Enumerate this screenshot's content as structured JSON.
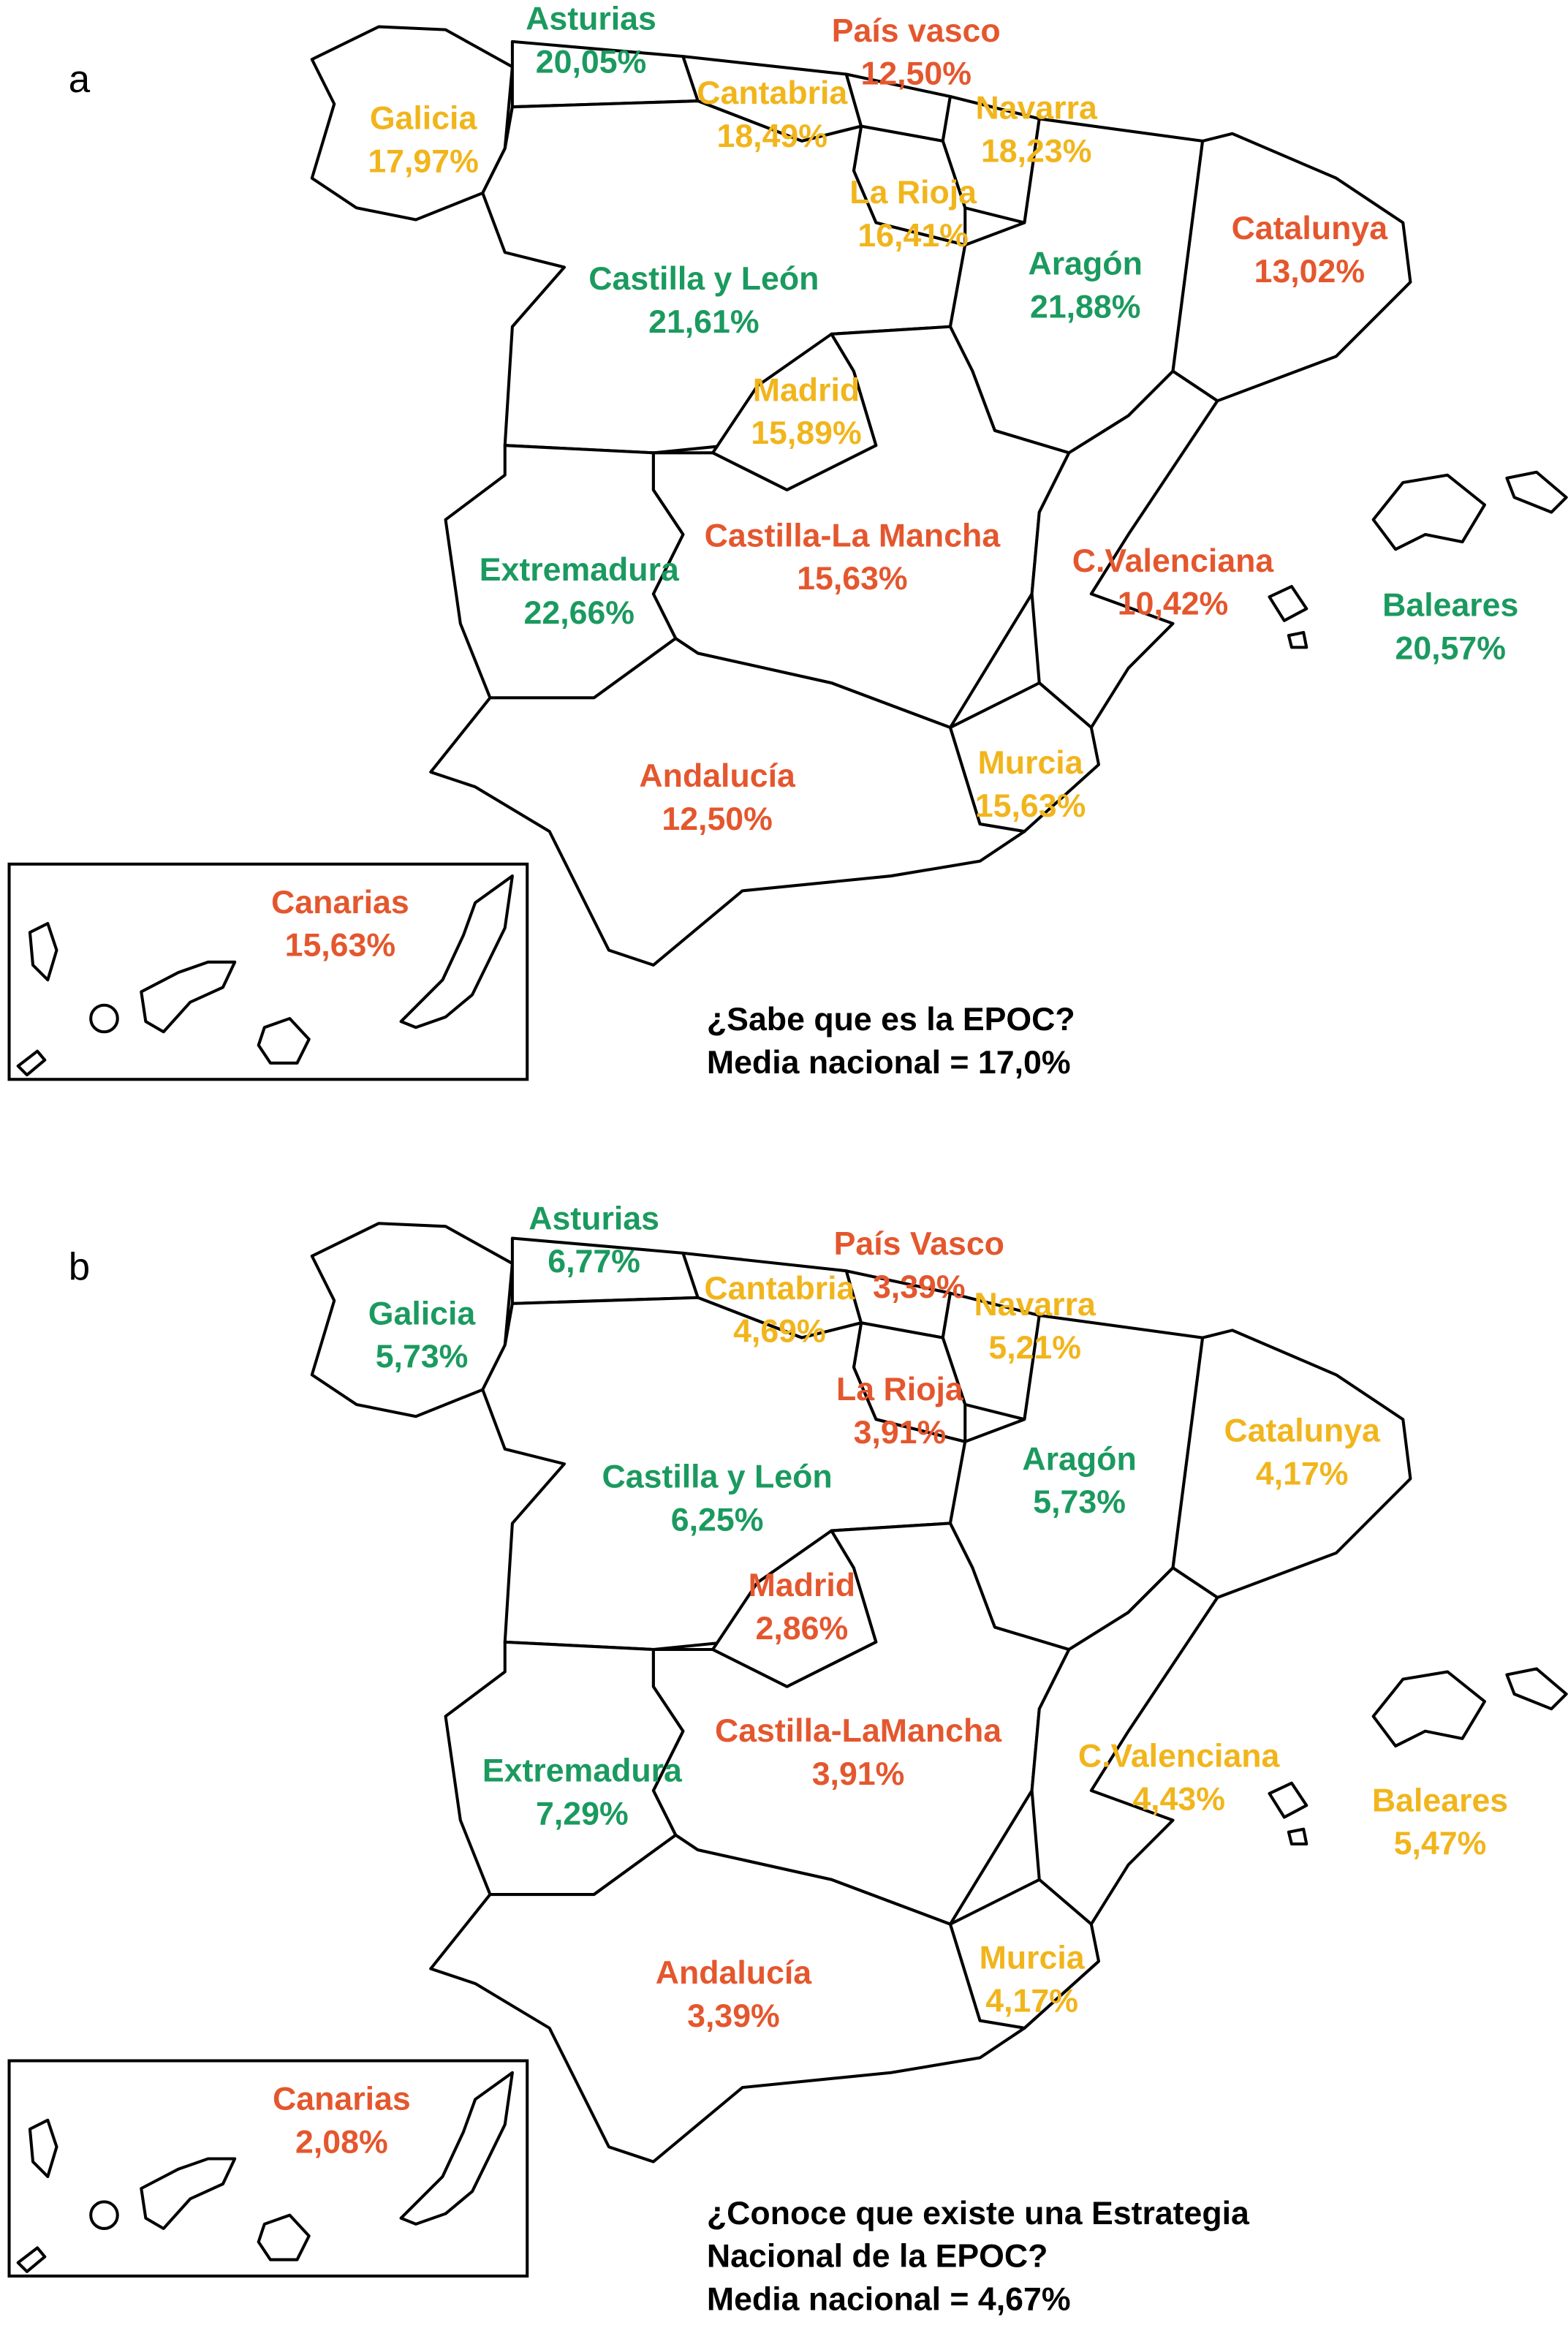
{
  "colors": {
    "green": "#1b9a5f",
    "orange": "#e4572e",
    "yellow": "#f1b51c"
  },
  "panels": [
    {
      "letter": "a",
      "question": [
        "¿Sabe que es la EPOC?"
      ],
      "national_mean": "Media nacional = 17,0%",
      "regions": [
        {
          "name": "Asturias",
          "value": "20,05%",
          "color": "green"
        },
        {
          "name": "País vasco",
          "value": "12,50%",
          "color": "orange"
        },
        {
          "name": "Galicia",
          "value": "17,97%",
          "color": "yellow"
        },
        {
          "name": "Cantabria",
          "value": "18,49%",
          "color": "yellow"
        },
        {
          "name": "Navarra",
          "value": "18,23%",
          "color": "yellow"
        },
        {
          "name": "La Rioja",
          "value": "16,41%",
          "color": "yellow"
        },
        {
          "name": "Castilla y León",
          "value": "21,61%",
          "color": "green"
        },
        {
          "name": "Aragón",
          "value": "21,88%",
          "color": "green"
        },
        {
          "name": "Catalunya",
          "value": "13,02%",
          "color": "orange"
        },
        {
          "name": "Madrid",
          "value": "15,89%",
          "color": "yellow"
        },
        {
          "name": "Castilla-La Mancha",
          "value": "15,63%",
          "color": "orange"
        },
        {
          "name": "Extremadura",
          "value": "22,66%",
          "color": "green"
        },
        {
          "name": "C.Valenciana",
          "value": "10,42%",
          "color": "orange"
        },
        {
          "name": "Baleares",
          "value": "20,57%",
          "color": "green"
        },
        {
          "name": "Andalucía",
          "value": "12,50%",
          "color": "orange"
        },
        {
          "name": "Murcia",
          "value": "15,63%",
          "color": "yellow"
        },
        {
          "name": "Canarias",
          "value": "15,63%",
          "color": "orange"
        }
      ]
    },
    {
      "letter": "b",
      "question": [
        "¿Conoce que existe una Estrategia",
        "Nacional de la EPOC?"
      ],
      "national_mean": "Media nacional = 4,67%",
      "regions": [
        {
          "name": "Asturias",
          "value": "6,77%",
          "color": "green"
        },
        {
          "name": "País Vasco",
          "value": "3,39%",
          "color": "orange"
        },
        {
          "name": "Galicia",
          "value": "5,73%",
          "color": "green"
        },
        {
          "name": "Cantabria",
          "value": "4,69%",
          "color": "yellow"
        },
        {
          "name": "Navarra",
          "value": "5,21%",
          "color": "yellow"
        },
        {
          "name": "La Rioja",
          "value": "3,91%",
          "color": "orange"
        },
        {
          "name": "Castilla y León",
          "value": "6,25%",
          "color": "green"
        },
        {
          "name": "Aragón",
          "value": "5,73%",
          "color": "green"
        },
        {
          "name": "Catalunya",
          "value": "4,17%",
          "color": "yellow"
        },
        {
          "name": "Madrid",
          "value": "2,86%",
          "color": "orange"
        },
        {
          "name": "Castilla-LaMancha",
          "value": "3,91%",
          "color": "orange"
        },
        {
          "name": "Extremadura",
          "value": "7,29%",
          "color": "green"
        },
        {
          "name": "C.Valenciana",
          "value": "4,43%",
          "color": "yellow"
        },
        {
          "name": "Baleares",
          "value": "5,47%",
          "color": "yellow"
        },
        {
          "name": "Andalucía",
          "value": "3,39%",
          "color": "orange"
        },
        {
          "name": "Murcia",
          "value": "4,17%",
          "color": "yellow"
        },
        {
          "name": "Canarias",
          "value": "2,08%",
          "color": "orange"
        }
      ]
    }
  ]
}
